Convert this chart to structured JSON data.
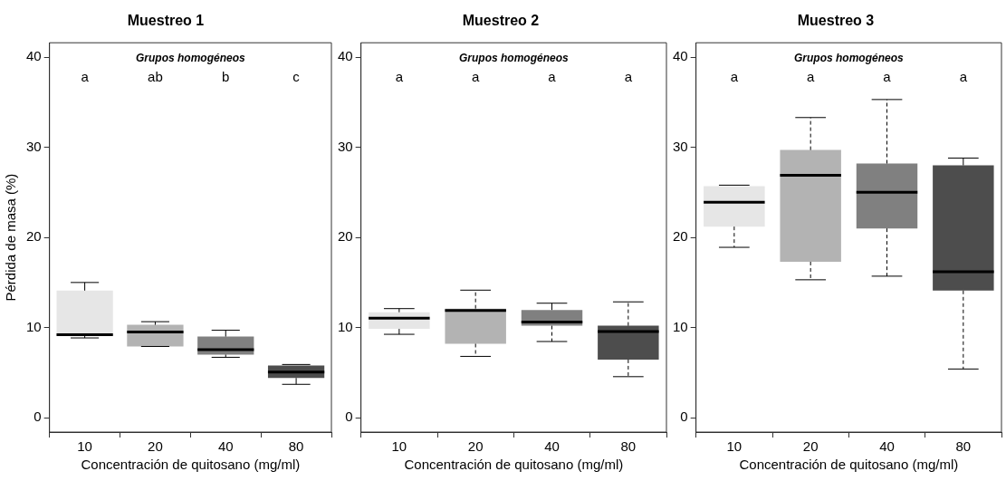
{
  "chart_data": [
    {
      "type": "box",
      "title": "Muestreo 1",
      "xlabel": "Concentración de quitosano (mg/ml)",
      "ylabel": "Pérdida de masa (%)",
      "categories": [
        "10",
        "20",
        "40",
        "80"
      ],
      "colors": [
        "#e6e6e6",
        "#b3b3b3",
        "#808080",
        "#4d4d4d"
      ],
      "ylim": [
        -1.6,
        41.6
      ],
      "yticks": [
        0,
        10,
        20,
        30,
        40
      ],
      "boxes": [
        {
          "low": 8.85,
          "q1": 9.1,
          "median": 9.2,
          "q3": 14.1,
          "high": 15.0
        },
        {
          "low": 7.9,
          "q1": 7.9,
          "median": 9.5,
          "q3": 10.3,
          "high": 10.65
        },
        {
          "low": 6.7,
          "q1": 7.0,
          "median": 7.55,
          "q3": 9.0,
          "high": 9.7
        },
        {
          "low": 3.7,
          "q1": 4.4,
          "median": 5.05,
          "q3": 5.8,
          "high": 5.9
        }
      ],
      "annotations": [
        "Grupos homogéneos",
        "a",
        "ab",
        "b",
        "c"
      ]
    },
    {
      "type": "box",
      "title": "Muestreo 2",
      "xlabel": "Concentración de quitosano (mg/ml)",
      "categories": [
        "10",
        "20",
        "40",
        "80"
      ],
      "colors": [
        "#e6e6e6",
        "#b3b3b3",
        "#808080",
        "#4d4d4d"
      ],
      "ylim": [
        -1.6,
        41.6
      ],
      "yticks": [
        0,
        10,
        20,
        30,
        40
      ],
      "boxes": [
        {
          "low": 9.25,
          "q1": 9.85,
          "median": 11.05,
          "q3": 11.7,
          "high": 12.1
        },
        {
          "low": 6.8,
          "q1": 8.2,
          "median": 11.9,
          "q3": 12.1,
          "high": 14.15
        },
        {
          "low": 8.45,
          "q1": 10.2,
          "median": 10.6,
          "q3": 11.95,
          "high": 12.7
        },
        {
          "low": 4.55,
          "q1": 6.45,
          "median": 9.55,
          "q3": 10.2,
          "high": 12.85
        }
      ],
      "annotations": [
        "Grupos homogéneos",
        "a",
        "a",
        "a",
        "a"
      ]
    },
    {
      "type": "box",
      "title": "Muestreo 3",
      "xlabel": "Concentración de quitosano (mg/ml)",
      "categories": [
        "10",
        "20",
        "40",
        "80"
      ],
      "colors": [
        "#e6e6e6",
        "#b3b3b3",
        "#808080",
        "#4d4d4d"
      ],
      "ylim": [
        -1.6,
        41.6
      ],
      "yticks": [
        0,
        10,
        20,
        30,
        40
      ],
      "boxes": [
        {
          "low": 18.9,
          "q1": 21.2,
          "median": 23.9,
          "q3": 25.7,
          "high": 25.8
        },
        {
          "low": 15.3,
          "q1": 17.3,
          "median": 26.9,
          "q3": 29.7,
          "high": 33.3
        },
        {
          "low": 15.7,
          "q1": 21.0,
          "median": 25.0,
          "q3": 28.2,
          "high": 35.3
        },
        {
          "low": 5.4,
          "q1": 14.1,
          "median": 16.2,
          "q3": 28.0,
          "high": 28.8
        }
      ],
      "annotations": [
        "Grupos homogéneos",
        "a",
        "a",
        "a",
        "a"
      ]
    }
  ]
}
